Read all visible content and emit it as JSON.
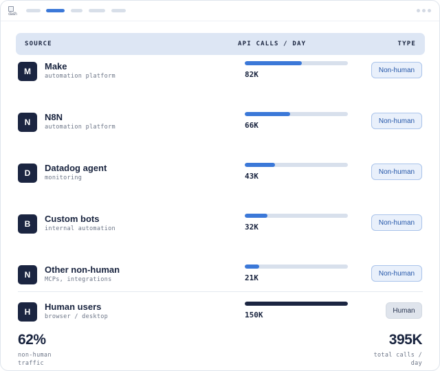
{
  "logo": {
    "name": "broken-image-icon",
    "alt_text": "dash"
  },
  "nav": {
    "tabs": [
      {
        "active": false
      },
      {
        "active": true
      },
      {
        "active": false
      },
      {
        "active": false
      },
      {
        "active": false
      }
    ]
  },
  "colors": {
    "accent": "#3b78d8",
    "dark": "#1b2541",
    "header_bg": "#dde6f4",
    "badge_bg": "#e9f0fb"
  },
  "table": {
    "headers": {
      "source": "SOURCE",
      "calls": "API CALLS / DAY",
      "type": "TYPE"
    },
    "rows": [
      {
        "initial": "M",
        "name": "Make",
        "desc": "automation platform",
        "calls": "82K",
        "share": 0.55,
        "type": "Non-human",
        "human": false
      },
      {
        "initial": "N",
        "name": "N8N",
        "desc": "automation platform",
        "calls": "66K",
        "share": 0.44,
        "type": "Non-human",
        "human": false
      },
      {
        "initial": "D",
        "name": "Datadog agent",
        "desc": "monitoring",
        "calls": "43K",
        "share": 0.29,
        "type": "Non-human",
        "human": false
      },
      {
        "initial": "B",
        "name": "Custom bots",
        "desc": "internal automation",
        "calls": "32K",
        "share": 0.22,
        "type": "Non-human",
        "human": false
      },
      {
        "initial": "N",
        "name": "Other non-human",
        "desc": "MCPs, integrations",
        "calls": "21K",
        "share": 0.14,
        "type": "Non-human",
        "human": false
      },
      {
        "initial": "H",
        "name": "Human users",
        "desc": "browser / desktop",
        "calls": "150K",
        "share": 1.0,
        "type": "Human",
        "human": true
      }
    ]
  },
  "summary": {
    "left_value": "62%",
    "left_caption": [
      "non-human",
      "traffic"
    ],
    "right_value": "395K",
    "right_caption": [
      "total calls /",
      "day"
    ]
  }
}
